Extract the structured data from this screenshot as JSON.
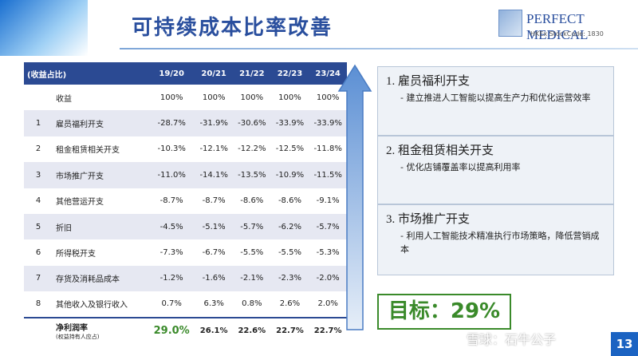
{
  "header": {
    "title": "可持续成本比率改善",
    "logo_name": "PERFECT MEDICAL",
    "logo_sub": "HKEx StockCode: 1830"
  },
  "table": {
    "corner": "(收益占比)",
    "columns": [
      "19/20",
      "20/21",
      "21/22",
      "22/23",
      "23/24"
    ],
    "rows": [
      {
        "label": "收益",
        "values": [
          "100%",
          "100%",
          "100%",
          "100%",
          "100%"
        ]
      },
      {
        "no": "1",
        "label": "雇员福利开支",
        "values": [
          "-28.7%",
          "-31.9%",
          "-30.6%",
          "-33.9%",
          "-33.9%"
        ]
      },
      {
        "no": "2",
        "label": "租金租赁相关开支",
        "values": [
          "-10.3%",
          "-12.1%",
          "-12.2%",
          "-12.5%",
          "-11.8%"
        ]
      },
      {
        "no": "3",
        "label": "市场推广开支",
        "values": [
          "-11.0%",
          "-14.1%",
          "-13.5%",
          "-10.9%",
          "-11.5%"
        ]
      },
      {
        "no": "4",
        "label": "其他营运开支",
        "values": [
          "-8.7%",
          "-8.7%",
          "-8.6%",
          "-8.6%",
          "-9.1%"
        ]
      },
      {
        "no": "5",
        "label": "折旧",
        "values": [
          "-4.5%",
          "-5.1%",
          "-5.7%",
          "-6.2%",
          "-5.7%"
        ]
      },
      {
        "no": "6",
        "label": "所得税开支",
        "values": [
          "-7.3%",
          "-6.7%",
          "-5.5%",
          "-5.5%",
          "-5.3%"
        ]
      },
      {
        "no": "7",
        "label": "存货及消耗品成本",
        "values": [
          "-1.2%",
          "-1.6%",
          "-2.1%",
          "-2.3%",
          "-2.0%"
        ]
      },
      {
        "no": "8",
        "label": "其他收入及银行收入",
        "values": [
          "0.7%",
          "6.3%",
          "0.8%",
          "2.6%",
          "2.0%"
        ]
      }
    ],
    "total": {
      "label": "净利润率",
      "sublabel": "(权益持有人应占)",
      "values": [
        "29.0%",
        "26.1%",
        "22.6%",
        "22.7%",
        "22.7%"
      ]
    }
  },
  "boxes": [
    {
      "title": "1. 雇员福利开支",
      "text": "- 建立推进人工智能以提高生产力和优化运营效率"
    },
    {
      "title": "2. 租金租赁相关开支",
      "text": "- 优化店铺覆盖率以提高利用率"
    },
    {
      "title": "3. 市场推广开支",
      "text": "- 利用人工智能技术精准执行市场策略，降低营销成本"
    }
  ],
  "target": "目标：29%",
  "watermark": "雪球：石牛公子",
  "page_number": "13"
}
